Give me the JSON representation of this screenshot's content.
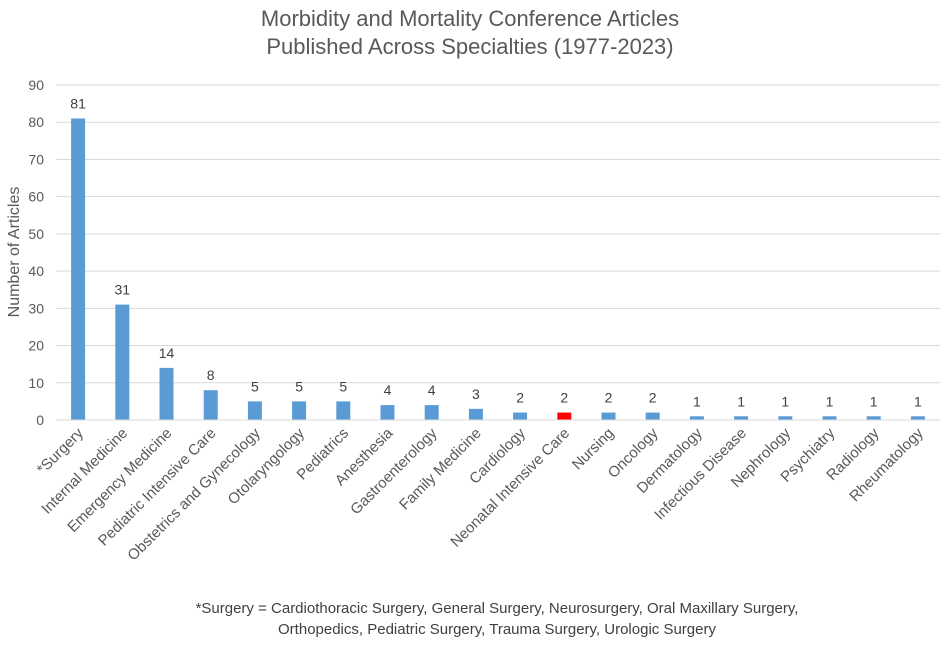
{
  "chart_data": {
    "type": "bar",
    "title_lines": [
      "Morbidity and Mortality Conference Articles",
      "Published Across Specialties (1977-2023)"
    ],
    "xlabel": "",
    "ylabel": "Number of Articles",
    "ylim": [
      0,
      90
    ],
    "yticks": [
      0,
      10,
      20,
      30,
      40,
      50,
      60,
      70,
      80,
      90
    ],
    "grid": true,
    "categories": [
      "*Surgery",
      "Internal Medicine",
      "Emergency Medicine",
      "Pediatric Intensive Care",
      "Obstetrics and Gynecology",
      "Otolaryngology",
      "Pediatrics",
      "Anesthesia",
      "Gastroenterology",
      "Family Medicine",
      "Cardiology",
      "Neonatal Intensive Care",
      "Nursing",
      "Oncology",
      "Dermatology",
      "Infectious Disease",
      "Nephrology",
      "Psychiatry",
      "Radiology",
      "Rheumatology"
    ],
    "values": [
      81,
      31,
      14,
      8,
      5,
      5,
      5,
      4,
      4,
      3,
      2,
      2,
      2,
      2,
      1,
      1,
      1,
      1,
      1,
      1
    ],
    "bar_color": "#5b9bd5",
    "highlight_index": 11,
    "highlight_color": "#ff0000",
    "footnote_lines": [
      "*Surgery = Cardiothoracic Surgery, General Surgery, Neurosurgery, Oral Maxillary Surgery,",
      "Orthopedics, Pediatric Surgery, Trauma Surgery, Urologic Surgery"
    ]
  }
}
